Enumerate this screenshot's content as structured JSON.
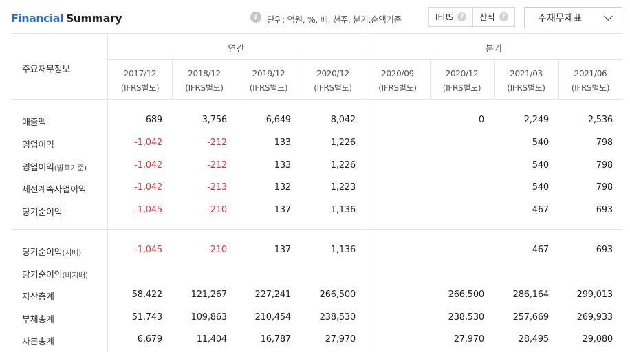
{
  "header": {
    "title_part1": "Financial",
    "title_part2": "Summary",
    "info_icon": "info-icon",
    "unit_text": "단위: 억원, %, 배, 천주, 분기:순액기준",
    "toggle_ifrs": "IFRS",
    "toggle_gaap": "산식",
    "help_icon": "?",
    "dropdown_value": "주재무제표"
  },
  "table": {
    "corner_label": "주요재무정보",
    "groups": {
      "annual": "연간",
      "quarter": "분기"
    },
    "columns": [
      {
        "period": "2017/12",
        "basis": "(IFRS별도)"
      },
      {
        "period": "2018/12",
        "basis": "(IFRS별도)"
      },
      {
        "period": "2019/12",
        "basis": "(IFRS별도)"
      },
      {
        "period": "2020/12",
        "basis": "(IFRS별도)"
      },
      {
        "period": "2020/09",
        "basis": "(IFRS별도)"
      },
      {
        "period": "2020/12",
        "basis": "(IFRS별도)"
      },
      {
        "period": "2021/03",
        "basis": "(IFRS별도)"
      },
      {
        "period": "2021/06",
        "basis": "(IFRS별도)"
      }
    ],
    "rows": [
      {
        "label": "매출액",
        "sub": "",
        "values": [
          "689",
          "3,756",
          "6,649",
          "8,042",
          "",
          "0",
          "2,249",
          "2,536"
        ]
      },
      {
        "label": "영업이익",
        "sub": "",
        "values": [
          "-1,042",
          "-212",
          "133",
          "1,226",
          "",
          "",
          "540",
          "798"
        ]
      },
      {
        "label": "영업이익",
        "sub": "(발표기준)",
        "values": [
          "-1,042",
          "-212",
          "133",
          "1,226",
          "",
          "",
          "540",
          "798"
        ]
      },
      {
        "label": "세전계속사업이익",
        "sub": "",
        "values": [
          "-1,042",
          "-213",
          "132",
          "1,223",
          "",
          "",
          "540",
          "798"
        ]
      },
      {
        "label": "당기순이익",
        "sub": "",
        "values": [
          "-1,045",
          "-210",
          "137",
          "1,136",
          "",
          "",
          "467",
          "693"
        ]
      },
      {
        "label": "당기순이익",
        "sub": "(지배)",
        "values": [
          "-1,045",
          "-210",
          "137",
          "1,136",
          "",
          "",
          "467",
          "693"
        ]
      },
      {
        "label": "당기순이익",
        "sub": "(비지배)",
        "values": [
          "",
          "",
          "",
          "",
          "",
          "",
          "",
          ""
        ]
      },
      {
        "label": "자산총계",
        "sub": "",
        "values": [
          "58,422",
          "121,267",
          "227,241",
          "266,500",
          "",
          "266,500",
          "286,164",
          "299,013"
        ]
      },
      {
        "label": "부채총계",
        "sub": "",
        "values": [
          "51,743",
          "109,863",
          "210,454",
          "238,530",
          "",
          "238,530",
          "257,669",
          "269,933"
        ]
      },
      {
        "label": "자본총계",
        "sub": "",
        "values": [
          "6,679",
          "11,404",
          "16,787",
          "27,970",
          "",
          "27,970",
          "28,495",
          "29,080"
        ]
      }
    ]
  },
  "colors": {
    "accent": "#2e6ed9",
    "negative": "#e4353a"
  }
}
